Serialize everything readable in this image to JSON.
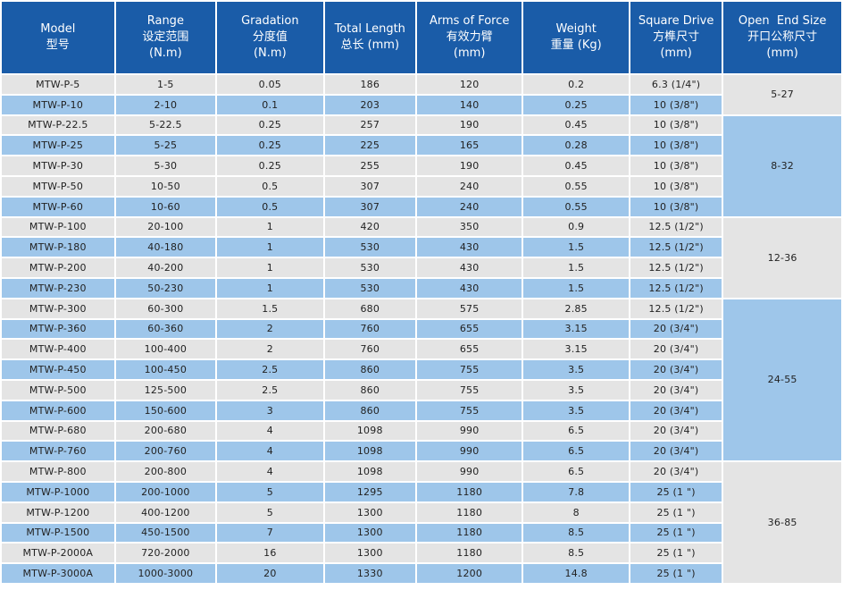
{
  "headers": [
    {
      "en": "Model",
      "cn": "型号",
      "unit": ""
    },
    {
      "en": "Range",
      "cn": "设定范围",
      "unit": "(N.m)"
    },
    {
      "en": "Gradation",
      "cn": "分度值",
      "unit": "(N.m)"
    },
    {
      "en": "Total Length",
      "cn": "总长 (mm)",
      "unit": ""
    },
    {
      "en": "Arms of Force",
      "cn": "有效力臂",
      "unit": "(mm)"
    },
    {
      "en": "Weight",
      "cn": "重量 (Kg)",
      "unit": ""
    },
    {
      "en": "Square Drive",
      "cn": "方榫尺寸",
      "unit": "(mm)"
    },
    {
      "en": "Open  End Size",
      "cn": "开口公称尺寸",
      "unit": "(mm)"
    }
  ],
  "rows": [
    {
      "model": "MTW-P-5",
      "range": "1-5",
      "gradation": "0.05",
      "length": "186",
      "arm": "120",
      "weight": "0.2",
      "drive": "6.3 (1/4\")",
      "shade": "gray"
    },
    {
      "model": "MTW-P-10",
      "range": "2-10",
      "gradation": "0.1",
      "length": "203",
      "arm": "140",
      "weight": "0.25",
      "drive": "10 (3/8\")",
      "shade": "blue"
    },
    {
      "model": "MTW-P-22.5",
      "range": "5-22.5",
      "gradation": "0.25",
      "length": "257",
      "arm": "190",
      "weight": "0.45",
      "drive": "10 (3/8\")",
      "shade": "gray"
    },
    {
      "model": "MTW-P-25",
      "range": "5-25",
      "gradation": "0.25",
      "length": "225",
      "arm": "165",
      "weight": "0.28",
      "drive": "10 (3/8\")",
      "shade": "blue"
    },
    {
      "model": "MTW-P-30",
      "range": "5-30",
      "gradation": "0.25",
      "length": "255",
      "arm": "190",
      "weight": "0.45",
      "drive": "10 (3/8\")",
      "shade": "gray"
    },
    {
      "model": "MTW-P-50",
      "range": "10-50",
      "gradation": "0.5",
      "length": "307",
      "arm": "240",
      "weight": "0.55",
      "drive": "10 (3/8\")",
      "shade": "gray"
    },
    {
      "model": "MTW-P-60",
      "range": "10-60",
      "gradation": "0.5",
      "length": "307",
      "arm": "240",
      "weight": "0.55",
      "drive": "10 (3/8\")",
      "shade": "blue"
    },
    {
      "model": "MTW-P-100",
      "range": "20-100",
      "gradation": "1",
      "length": "420",
      "arm": "350",
      "weight": "0.9",
      "drive": "12.5 (1/2\")",
      "shade": "gray"
    },
    {
      "model": "MTW-P-180",
      "range": "40-180",
      "gradation": "1",
      "length": "530",
      "arm": "430",
      "weight": "1.5",
      "drive": "12.5 (1/2\")",
      "shade": "blue"
    },
    {
      "model": "MTW-P-200",
      "range": "40-200",
      "gradation": "1",
      "length": "530",
      "arm": "430",
      "weight": "1.5",
      "drive": "12.5 (1/2\")",
      "shade": "gray"
    },
    {
      "model": "MTW-P-230",
      "range": "50-230",
      "gradation": "1",
      "length": "530",
      "arm": "430",
      "weight": "1.5",
      "drive": "12.5 (1/2\")",
      "shade": "blue"
    },
    {
      "model": "MTW-P-300",
      "range": "60-300",
      "gradation": "1.5",
      "length": "680",
      "arm": "575",
      "weight": "2.85",
      "drive": "12.5 (1/2\")",
      "shade": "gray"
    },
    {
      "model": "MTW-P-360",
      "range": "60-360",
      "gradation": "2",
      "length": "760",
      "arm": "655",
      "weight": "3.15",
      "drive": "20 (3/4\")",
      "shade": "blue"
    },
    {
      "model": "MTW-P-400",
      "range": "100-400",
      "gradation": "2",
      "length": "760",
      "arm": "655",
      "weight": "3.15",
      "drive": "20 (3/4\")",
      "shade": "gray"
    },
    {
      "model": "MTW-P-450",
      "range": "100-450",
      "gradation": "2.5",
      "length": "860",
      "arm": "755",
      "weight": "3.5",
      "drive": "20 (3/4\")",
      "shade": "blue"
    },
    {
      "model": "MTW-P-500",
      "range": "125-500",
      "gradation": "2.5",
      "length": "860",
      "arm": "755",
      "weight": "3.5",
      "drive": "20 (3/4\")",
      "shade": "gray"
    },
    {
      "model": "MTW-P-600",
      "range": "150-600",
      "gradation": "3",
      "length": "860",
      "arm": "755",
      "weight": "3.5",
      "drive": "20 (3/4\")",
      "shade": "blue"
    },
    {
      "model": "MTW-P-680",
      "range": "200-680",
      "gradation": "4",
      "length": "1098",
      "arm": "990",
      "weight": "6.5",
      "drive": "20 (3/4\")",
      "shade": "gray"
    },
    {
      "model": "MTW-P-760",
      "range": "200-760",
      "gradation": "4",
      "length": "1098",
      "arm": "990",
      "weight": "6.5",
      "drive": "20 (3/4\")",
      "shade": "blue"
    },
    {
      "model": "MTW-P-800",
      "range": "200-800",
      "gradation": "4",
      "length": "1098",
      "arm": "990",
      "weight": "6.5",
      "drive": "20 (3/4\")",
      "shade": "gray"
    },
    {
      "model": "MTW-P-1000",
      "range": "200-1000",
      "gradation": "5",
      "length": "1295",
      "arm": "1180",
      "weight": "7.8",
      "drive": "25 (1 \")",
      "shade": "blue"
    },
    {
      "model": "MTW-P-1200",
      "range": "400-1200",
      "gradation": "5",
      "length": "1300",
      "arm": "1180",
      "weight": "8",
      "drive": "25 (1 \")",
      "shade": "gray"
    },
    {
      "model": "MTW-P-1500",
      "range": "450-1500",
      "gradation": "7",
      "length": "1300",
      "arm": "1180",
      "weight": "8.5",
      "drive": "25 (1 \")",
      "shade": "blue"
    },
    {
      "model": "MTW-P-2000A",
      "range": "720-2000",
      "gradation": "16",
      "length": "1300",
      "arm": "1180",
      "weight": "8.5",
      "drive": "25 (1 \")",
      "shade": "gray"
    },
    {
      "model": "MTW-P-3000A",
      "range": "1000-3000",
      "gradation": "20",
      "length": "1330",
      "arm": "1200",
      "weight": "14.8",
      "drive": "25 (1 \")",
      "shade": "blue"
    }
  ],
  "open_end_groups": [
    {
      "start": 0,
      "span": 2,
      "size": "5-27",
      "shade": "gray"
    },
    {
      "start": 2,
      "span": 5,
      "size": "8-32",
      "shade": "blue"
    },
    {
      "start": 7,
      "span": 4,
      "size": "12-36",
      "shade": "gray"
    },
    {
      "start": 11,
      "span": 8,
      "size": "24-55",
      "shade": "blue"
    },
    {
      "start": 19,
      "span": 6,
      "size": "36-85",
      "shade": "gray"
    }
  ],
  "colors": {
    "header": "#1a5ca8",
    "row_gray": "#e4e4e4",
    "row_blue": "#9ec6ea"
  }
}
